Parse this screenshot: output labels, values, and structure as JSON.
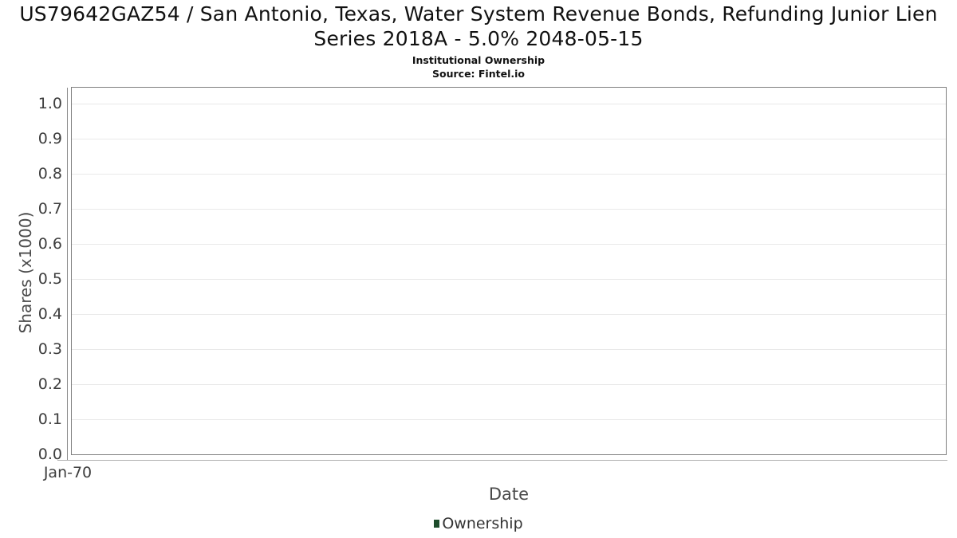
{
  "colors": {
    "plot_border": "#7f7f7f",
    "axis_line": "#8a8a8a",
    "x_axis_line": "#b0b0b0",
    "gridline": "#e9e9e9",
    "tick_label": "#3d3d3d",
    "axis_title": "#4a4a4a",
    "legend_text": "#333333",
    "title_text": "#111111",
    "series_ownership": "#1e4d2b"
  },
  "chart_data": {
    "type": "line",
    "title": "US79642GAZ54 / San Antonio, Texas, Water System Revenue Bonds, Refunding Junior Lien Series 2018A - 5.0% 2048-05-15",
    "subtitle": "Institutional Ownership",
    "source_label": "Source: Fintel.io",
    "xlabel": "Date",
    "ylabel": "Shares (x1000)",
    "x_tick_labels": [
      "Jan-70"
    ],
    "y_tick_labels": [
      "0.0",
      "0.1",
      "0.2",
      "0.3",
      "0.4",
      "0.5",
      "0.6",
      "0.7",
      "0.8",
      "0.9",
      "1.0"
    ],
    "ylim": [
      0.0,
      1.05
    ],
    "grid": "horizontal-only",
    "legend": {
      "position": "bottom-center",
      "entries": [
        {
          "label": "Ownership",
          "color": "#1e4d2b"
        }
      ]
    },
    "series": [
      {
        "name": "Ownership",
        "points": []
      }
    ]
  }
}
